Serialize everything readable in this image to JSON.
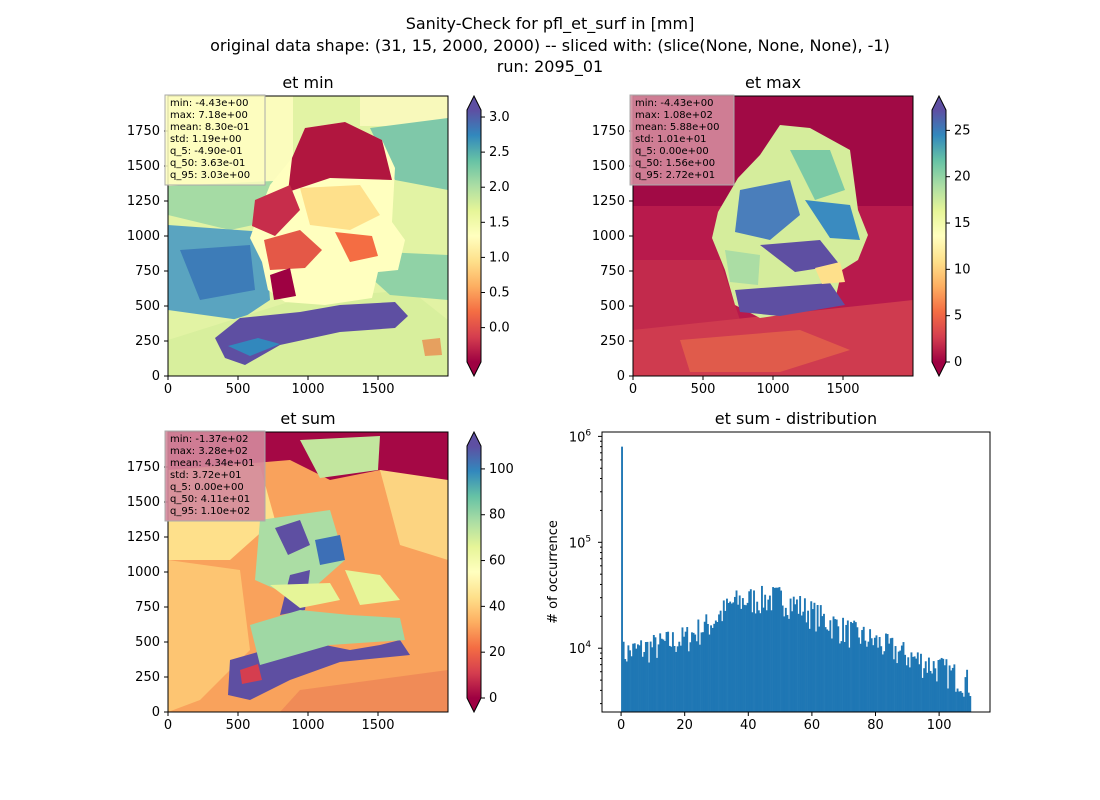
{
  "suptitle": {
    "line1": "Sanity-Check for pfl_et_surf in [mm]",
    "line2": "original data shape: (31, 15, 2000, 2000) -- sliced with: (slice(None, None, None), -1)",
    "line3": "run: 2095_01"
  },
  "chart_data": [
    {
      "type": "heatmap",
      "title": "et min",
      "colormap": "Spectral",
      "xlim": [
        0,
        2000
      ],
      "ylim": [
        0,
        2000
      ],
      "xticks": [
        "0",
        "500",
        "1000",
        "1500"
      ],
      "yticks": [
        "0",
        "250",
        "500",
        "750",
        "1000",
        "1250",
        "1500",
        "1750"
      ],
      "colorbar": {
        "min": -0.49,
        "max": 3.1,
        "ticks": [
          0.0,
          0.5,
          1.0,
          1.5,
          2.0,
          2.5,
          3.0
        ],
        "tick_labels": [
          "0.0",
          "0.5",
          "1.0",
          "1.5",
          "2.0",
          "2.5",
          "3.0"
        ]
      },
      "stats": [
        "min: -4.43e+00",
        "max: 7.18e+00",
        "mean: 8.30e-01",
        "std: 1.19e+00",
        "q_5: -4.90e-01",
        "q_50: 3.63e-01",
        "q_95: 3.03e+00"
      ],
      "stats_box_color": "#fdfdbf"
    },
    {
      "type": "heatmap",
      "title": "et max",
      "colormap": "Spectral",
      "xlim": [
        0,
        2000
      ],
      "ylim": [
        0,
        2000
      ],
      "xticks": [
        "0",
        "500",
        "1000",
        "1500"
      ],
      "yticks": [
        "0",
        "250",
        "500",
        "750",
        "1000",
        "1250",
        "1500",
        "1750"
      ],
      "colorbar": {
        "min": 0,
        "max": 27.2,
        "ticks": [
          0,
          5,
          10,
          15,
          20,
          25
        ],
        "tick_labels": [
          "0",
          "5",
          "10",
          "15",
          "20",
          "25"
        ]
      },
      "stats": [
        "min: -4.43e+00",
        "max: 1.08e+02",
        "mean: 5.88e+00",
        "std: 1.01e+01",
        "q_5: 0.00e+00",
        "q_50: 1.56e+00",
        "q_95: 2.72e+01"
      ],
      "stats_box_color": "#d48a9c"
    },
    {
      "type": "heatmap",
      "title": "et sum",
      "colormap": "Spectral",
      "xlim": [
        0,
        2000
      ],
      "ylim": [
        0,
        2000
      ],
      "xticks": [
        "0",
        "500",
        "1000",
        "1500"
      ],
      "yticks": [
        "0",
        "250",
        "500",
        "750",
        "1000",
        "1250",
        "1500",
        "1750"
      ],
      "colorbar": {
        "min": 0,
        "max": 110,
        "ticks": [
          0,
          20,
          40,
          60,
          80,
          100
        ],
        "tick_labels": [
          "0",
          "20",
          "40",
          "60",
          "80",
          "100"
        ]
      },
      "stats": [
        "min: -1.37e+02",
        "max: 3.28e+02",
        "mean: 4.34e+01",
        "std: 3.72e+01",
        "q_5: 0.00e+00",
        "q_50: 4.11e+01",
        "q_95: 1.10e+02"
      ],
      "stats_box_color": "#d48a9c"
    },
    {
      "type": "bar",
      "title": "et sum - distribution",
      "ylabel": "# of occurrence",
      "yscale": "log",
      "color": "#1f77b4",
      "xlim": [
        -6,
        116
      ],
      "ylim": [
        2500,
        1100000
      ],
      "xticks": [
        0,
        20,
        40,
        60,
        80,
        100
      ],
      "yticks": [
        {
          "value": 10000,
          "base": "10",
          "exp": "4"
        },
        {
          "value": 100000,
          "base": "10",
          "exp": "5"
        },
        {
          "value": 1000000,
          "base": "10",
          "exp": "6"
        }
      ],
      "spike": {
        "x": 0,
        "value": 800000
      },
      "envelope": [
        [
          0,
          9000
        ],
        [
          10,
          10500
        ],
        [
          20,
          12500
        ],
        [
          28,
          17500
        ],
        [
          35,
          27000
        ],
        [
          40,
          29000
        ],
        [
          50,
          30000
        ],
        [
          56,
          25000
        ],
        [
          62,
          20000
        ],
        [
          70,
          15000
        ],
        [
          80,
          11500
        ],
        [
          90,
          8500
        ],
        [
          100,
          6500
        ],
        [
          108,
          5000
        ],
        [
          110,
          4500
        ]
      ]
    }
  ]
}
